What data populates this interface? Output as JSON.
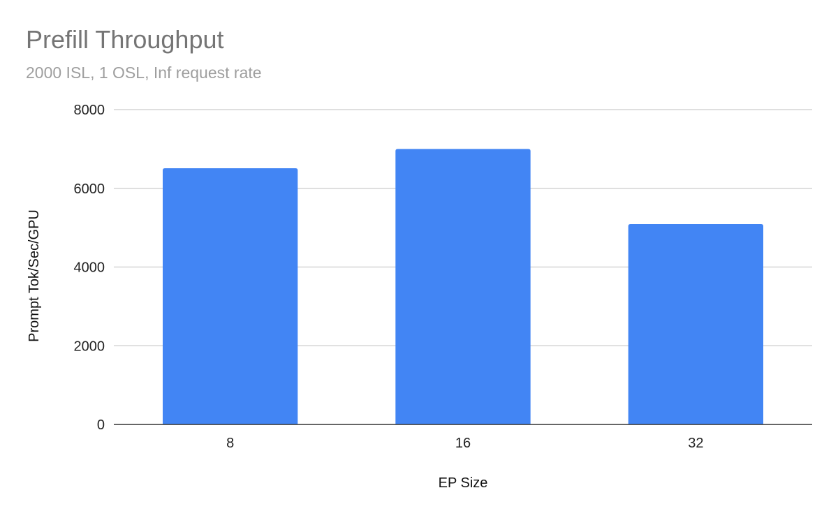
{
  "chart_data": {
    "type": "bar",
    "title": "Prefill Throughput",
    "subtitle": "2000 ISL, 1 OSL, Inf request rate",
    "xlabel": "EP Size",
    "ylabel": "Prompt Tok/Sec/GPU",
    "categories": [
      "8",
      "16",
      "32"
    ],
    "values": [
      6510,
      7000,
      5090
    ],
    "ylim": [
      0,
      8000
    ],
    "yticks": [
      "0",
      "2000",
      "4000",
      "6000",
      "8000"
    ],
    "grid": true,
    "legend": "none",
    "bar_color": "#4285f4"
  }
}
